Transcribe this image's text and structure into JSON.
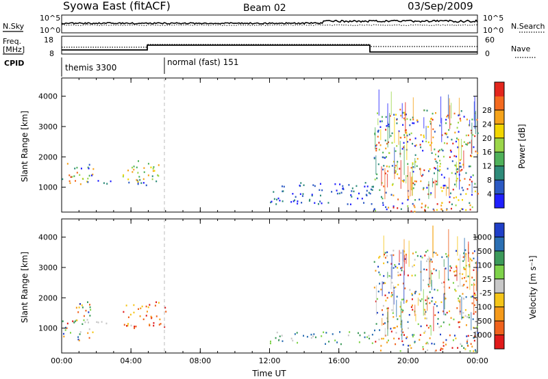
{
  "header": {
    "station": "Syowa East (fitACF)",
    "beam": "Beam 02",
    "date": "03/Sep/2009"
  },
  "status_panels": {
    "nsky_label": "N.Sky",
    "nsearch_label": "N.Search",
    "noise_ticks": [
      "10^5",
      "10^0"
    ],
    "freq_label_1": "Freq.",
    "freq_label_2": "[MHz]",
    "freq_ticks": [
      "18",
      "8"
    ],
    "nave_label": "Nave",
    "nave_ticks": [
      "60",
      "0"
    ],
    "cpid_label": "CPID",
    "cpid_modes": [
      {
        "name": "themis 3300",
        "start_hour": 0,
        "end_hour": 6
      },
      {
        "name": "normal (fast) 151",
        "start_hour": 6,
        "end_hour": 24
      }
    ]
  },
  "chart_data": [
    {
      "type": "heatmap",
      "title": "",
      "xlabel": "Time UT",
      "ylabel": "Slant Range [km]",
      "xlim": [
        0,
        24
      ],
      "ylim": [
        180,
        4600
      ],
      "x_tick_labels": [
        "00:00",
        "04:00",
        "08:00",
        "12:00",
        "16:00",
        "20:00",
        "00:00"
      ],
      "y_ticks": [
        1000,
        2000,
        3000,
        4000
      ],
      "colorbar": {
        "label": "Power [dB]",
        "ticks": [
          "4",
          "8",
          "12",
          "16",
          "20",
          "24",
          "28"
        ],
        "colors": [
          "#1f1fff",
          "#2b59c3",
          "#2e8b7a",
          "#4fb15a",
          "#9bd64a",
          "#f2d600",
          "#f5a31a",
          "#f46a1f",
          "#e3261d"
        ]
      },
      "echo_regions": [
        {
          "t0": 0.0,
          "t1": 1.8,
          "r0": 1050,
          "r1": 1900,
          "value": "mixed"
        },
        {
          "t0": 1.8,
          "t1": 5.0,
          "r0": 1050,
          "r1": 1250,
          "value": "low"
        },
        {
          "t0": 3.5,
          "t1": 6.0,
          "r0": 1200,
          "r1": 1900,
          "value": "mid"
        },
        {
          "t0": 12.0,
          "t1": 18.0,
          "r0": 450,
          "r1": 1200,
          "value": "low"
        },
        {
          "t0": 18.0,
          "t1": 24.0,
          "r0": 250,
          "r1": 3600,
          "value": "mixed"
        },
        {
          "t0": 20.0,
          "t1": 22.5,
          "r0": 200,
          "r1": 450,
          "value": "high"
        }
      ]
    },
    {
      "type": "heatmap",
      "title": "",
      "xlabel": "Time UT",
      "ylabel": "Slant Range [km]",
      "xlim": [
        0,
        24
      ],
      "ylim": [
        180,
        4600
      ],
      "x_tick_labels": [
        "00:00",
        "04:00",
        "08:00",
        "12:00",
        "16:00",
        "20:00",
        "00:00"
      ],
      "y_ticks": [
        1000,
        2000,
        3000,
        4000
      ],
      "colorbar": {
        "label": "Velocity [m s⁻¹]",
        "ticks": [
          "1000",
          "500",
          "100",
          "25",
          "-25",
          "-100",
          "-500",
          "-1000"
        ],
        "colors": [
          "#1f3fc8",
          "#2b6fb3",
          "#3c9a5a",
          "#7ed24a",
          "#c8c8c8",
          "#f5c518",
          "#f59a1a",
          "#f0621c",
          "#e01a1a"
        ]
      },
      "echo_regions": [
        {
          "t0": 0.0,
          "t1": 1.8,
          "r0": 600,
          "r1": 1900,
          "value": "mixed"
        },
        {
          "t0": 1.8,
          "t1": 4.0,
          "r0": 1100,
          "r1": 1250,
          "value": "ground"
        },
        {
          "t0": 3.5,
          "t1": 6.0,
          "r0": 1000,
          "r1": 1900,
          "value": "negative"
        },
        {
          "t0": 12.0,
          "t1": 18.0,
          "r0": 500,
          "r1": 900,
          "value": "positive"
        },
        {
          "t0": 18.0,
          "t1": 24.0,
          "r0": 250,
          "r1": 3600,
          "value": "mixed"
        }
      ]
    }
  ]
}
